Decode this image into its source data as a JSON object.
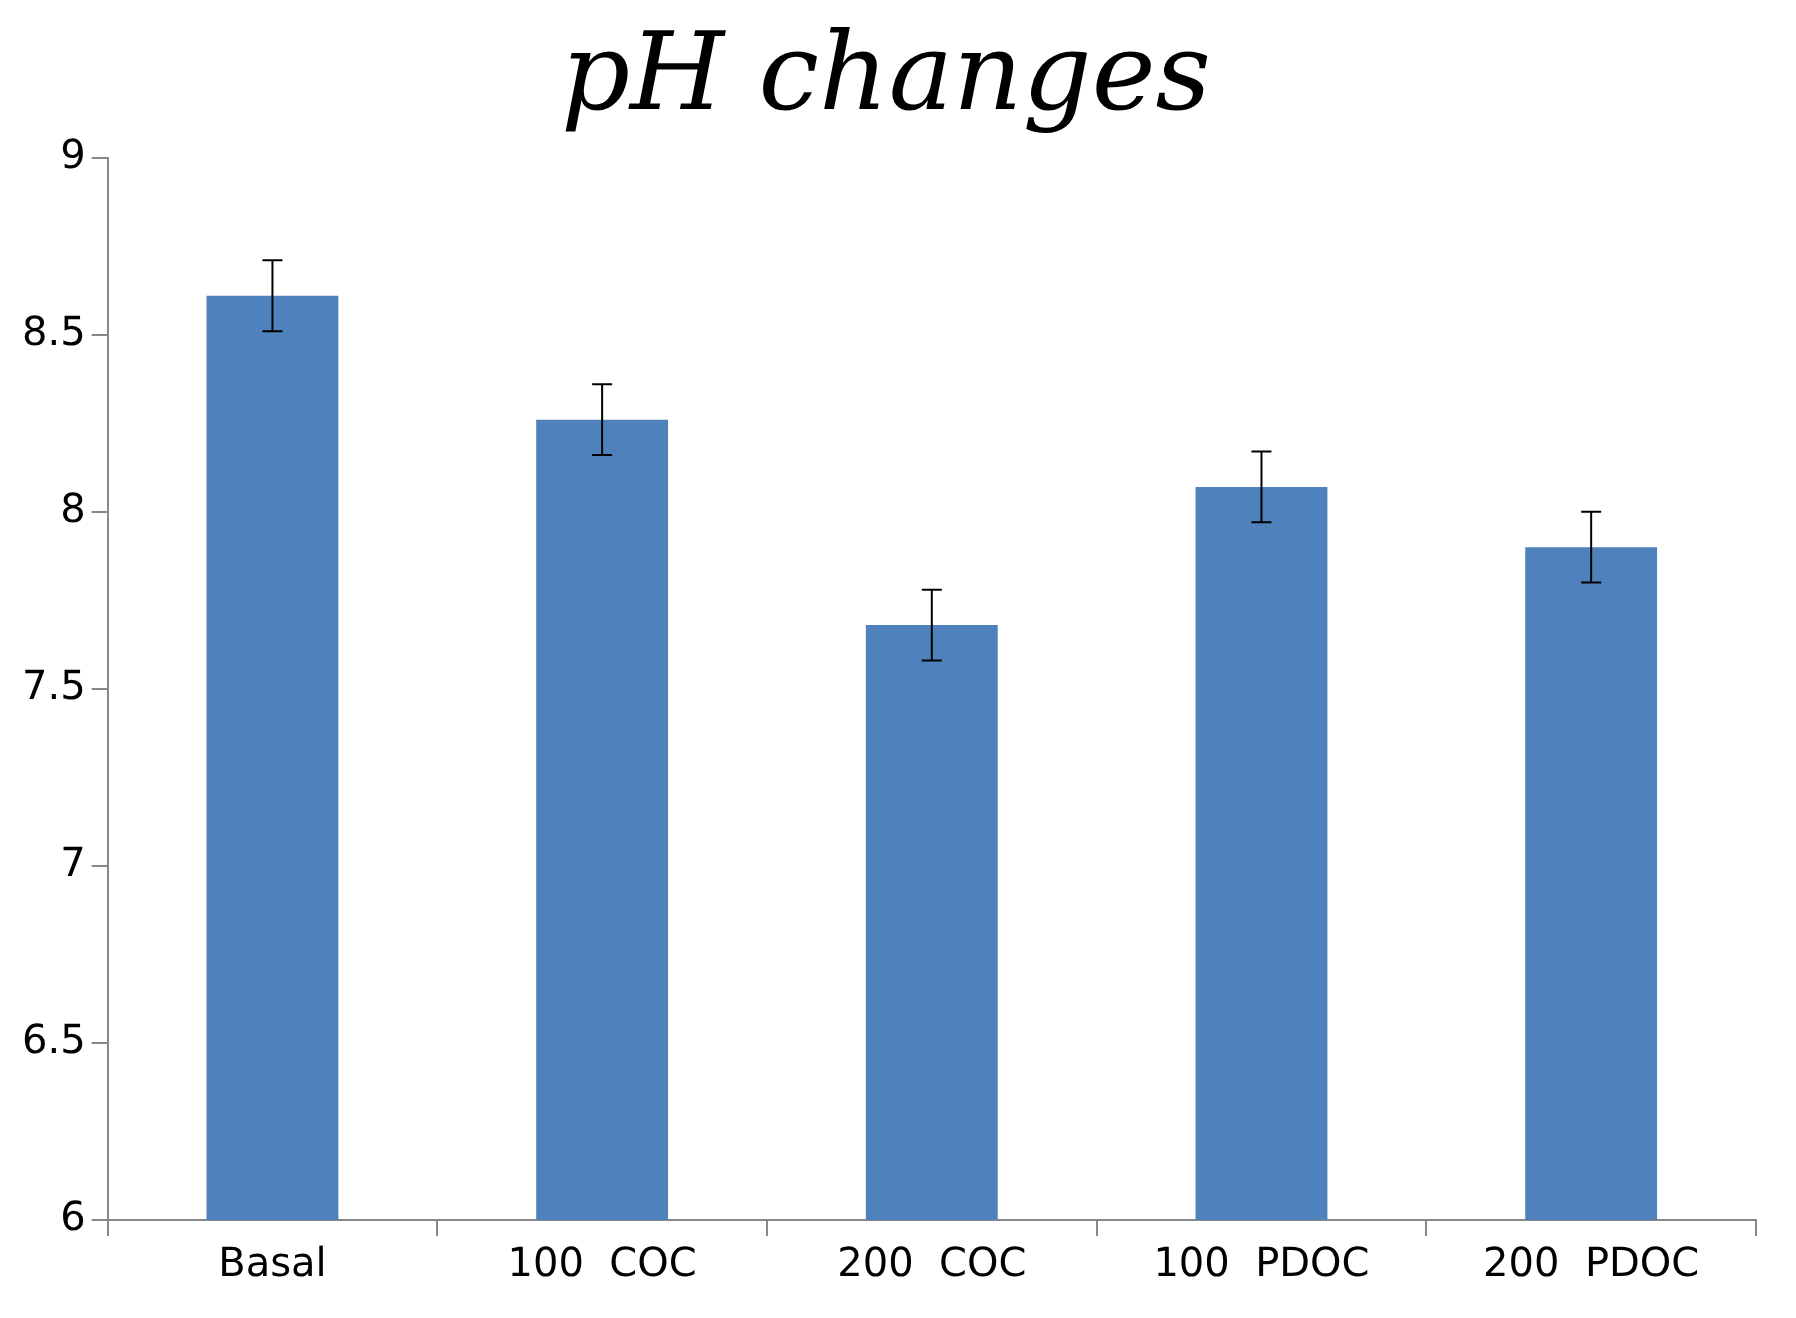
{
  "chart_data": {
    "type": "bar",
    "title": "pH changes",
    "categories": [
      "Basal",
      "100  COC",
      "200  COC",
      "100  PDOC",
      "200  PDOC"
    ],
    "values": [
      8.61,
      8.26,
      7.68,
      8.07,
      7.9
    ],
    "errors": [
      0.1,
      0.1,
      0.1,
      0.1,
      0.1
    ],
    "color": "#4f81bd",
    "ylim": [
      6,
      9
    ],
    "yticks": [
      6,
      6.5,
      7,
      7.5,
      8,
      8.5,
      9
    ],
    "grid": false,
    "legend": false
  }
}
